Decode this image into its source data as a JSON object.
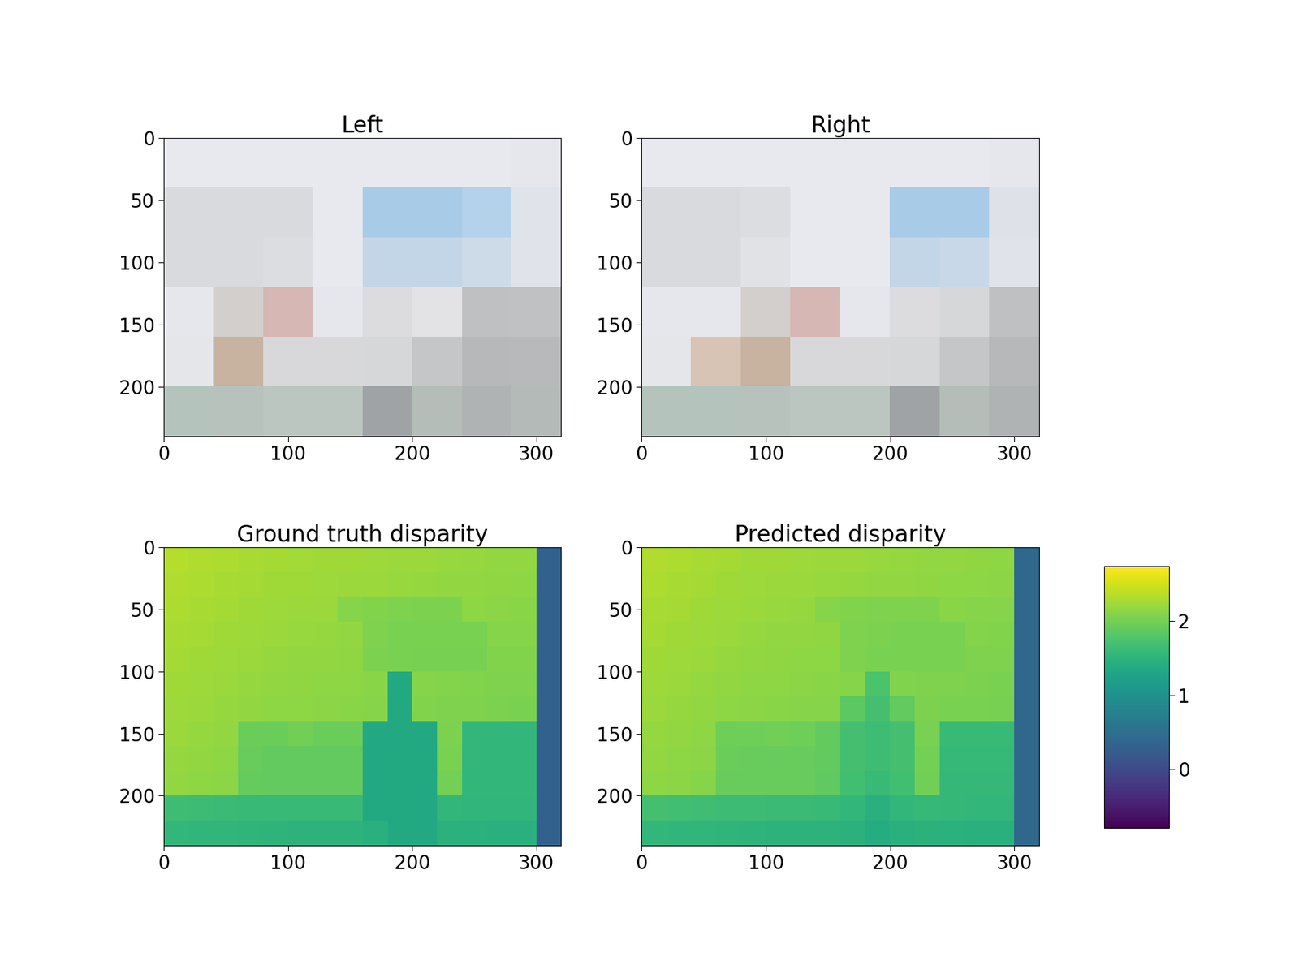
{
  "chart_data": [
    {
      "type": "image",
      "title": "Left",
      "xlim": [
        0,
        320
      ],
      "ylim": [
        240,
        0
      ],
      "xticks": [
        0,
        100,
        200,
        300
      ],
      "yticks": [
        0,
        50,
        100,
        150,
        200
      ],
      "colors": [
        [
          "#e8e9ef",
          "#e8e9ef",
          "#e8e9ef",
          "#e8e9ef",
          "#e8e9ef",
          "#e8e9ef",
          "#e8e9ef",
          "#e6e7ec"
        ],
        [
          "#d9dadd",
          "#d9dadd",
          "#d9dadd",
          "#e8e9ef",
          "#a8cce8",
          "#a8cce8",
          "#b4d2ea",
          "#e1e3ea"
        ],
        [
          "#d9dadd",
          "#d9dadd",
          "#dcdde0",
          "#e8e9ef",
          "#c3d6e8",
          "#c3d6e8",
          "#cddbe8",
          "#e1e3ea"
        ],
        [
          "#e6e7ec",
          "#d3cfcd",
          "#d6b7b4",
          "#e6e7ec",
          "#dcdcde",
          "#e3e3e6",
          "#bfc0c2",
          "#c0c1c3"
        ],
        [
          "#e5e6ea",
          "#c8b2a0",
          "#d8d8da",
          "#d8d8da",
          "#d6d7d9",
          "#c5c6c8",
          "#b7b8ba",
          "#b8b9bb"
        ],
        [
          "#b4c4bd",
          "#b8c2bc",
          "#bcc6c0",
          "#bcc6c0",
          "#9fa3a6",
          "#b4bdb8",
          "#b0b3b4",
          "#b4bab7"
        ]
      ]
    },
    {
      "type": "image",
      "title": "Right",
      "xlim": [
        0,
        320
      ],
      "ylim": [
        240,
        0
      ],
      "xticks": [
        0,
        100,
        200,
        300
      ],
      "yticks": [
        0,
        50,
        100,
        150,
        200
      ],
      "colors": [
        [
          "#e8e9ef",
          "#e8e9ef",
          "#e8e9ef",
          "#e8e9ef",
          "#e8e9ef",
          "#e8e9ef",
          "#e8e9ef",
          "#e6e7ec"
        ],
        [
          "#d9dadd",
          "#d9dadd",
          "#dcdde0",
          "#e8e9ef",
          "#e8e9ef",
          "#a8cce8",
          "#a8cce8",
          "#dfe1e8"
        ],
        [
          "#d9dadd",
          "#d9dadd",
          "#e1e2e6",
          "#e8e9ef",
          "#e8e9ef",
          "#c3d6e8",
          "#c9d8e8",
          "#e1e3ea"
        ],
        [
          "#e6e7ec",
          "#e6e7ec",
          "#d3cfcd",
          "#d6b7b4",
          "#e6e7ec",
          "#dcdcde",
          "#d6d7d9",
          "#bfc0c2"
        ],
        [
          "#e5e6ea",
          "#d8c4b4",
          "#c8b2a0",
          "#d8d8da",
          "#d8d8da",
          "#d6d7d9",
          "#c5c6c8",
          "#b7b8ba"
        ],
        [
          "#b4c4bd",
          "#b4c4bd",
          "#b8c2bc",
          "#bcc6c0",
          "#bcc6c0",
          "#9fa3a6",
          "#b4bdb8",
          "#b0b3b4"
        ]
      ]
    },
    {
      "type": "heatmap",
      "title": "Ground truth disparity",
      "xlim": [
        0,
        320
      ],
      "ylim": [
        240,
        0
      ],
      "xticks": [
        0,
        100,
        200,
        300
      ],
      "yticks": [
        0,
        50,
        100,
        150,
        200
      ],
      "color_range": [
        -0.8,
        2.75
      ],
      "cells": [
        [
          2.35,
          2.33,
          2.31,
          2.29,
          2.27,
          2.26,
          2.25,
          2.24,
          2.23,
          2.22,
          2.21,
          2.2,
          2.19,
          2.18,
          2.17,
          0.3
        ],
        [
          2.33,
          2.31,
          2.29,
          2.27,
          2.25,
          2.24,
          2.23,
          2.22,
          2.21,
          2.2,
          2.19,
          2.18,
          2.17,
          2.16,
          2.15,
          0.3
        ],
        [
          2.31,
          2.29,
          2.27,
          2.25,
          2.23,
          2.22,
          2.21,
          2.1,
          2.08,
          2.06,
          2.05,
          2.05,
          2.14,
          2.13,
          2.12,
          0.3
        ],
        [
          2.29,
          2.27,
          2.25,
          2.23,
          2.21,
          2.2,
          2.19,
          2.18,
          2.06,
          2.04,
          2.03,
          2.03,
          2.03,
          2.1,
          2.1,
          0.3
        ],
        [
          2.27,
          2.25,
          2.23,
          2.21,
          2.19,
          2.18,
          2.17,
          2.16,
          2.05,
          2.03,
          2.02,
          2.02,
          2.02,
          2.08,
          2.08,
          0.3
        ],
        [
          2.25,
          2.23,
          2.21,
          2.19,
          2.17,
          2.16,
          2.15,
          2.14,
          2.12,
          1.35,
          2.1,
          2.09,
          2.08,
          2.07,
          2.06,
          0.3
        ],
        [
          2.23,
          2.21,
          2.19,
          2.17,
          2.15,
          2.14,
          2.13,
          2.12,
          2.1,
          1.35,
          2.08,
          2.07,
          2.06,
          2.05,
          2.04,
          0.3
        ],
        [
          2.21,
          2.19,
          2.17,
          1.95,
          1.95,
          2.0,
          1.95,
          1.95,
          1.35,
          1.35,
          1.35,
          2.05,
          1.55,
          1.55,
          1.55,
          0.3
        ],
        [
          2.19,
          2.17,
          2.15,
          1.93,
          1.9,
          1.9,
          1.9,
          1.9,
          1.35,
          1.35,
          1.35,
          2.03,
          1.55,
          1.55,
          1.55,
          0.3
        ],
        [
          2.17,
          2.15,
          2.13,
          1.91,
          1.9,
          1.9,
          1.9,
          1.9,
          1.35,
          1.35,
          1.35,
          2.01,
          1.55,
          1.55,
          1.55,
          0.3
        ],
        [
          1.65,
          1.63,
          1.62,
          1.61,
          1.6,
          1.6,
          1.6,
          1.6,
          1.35,
          1.35,
          1.35,
          1.55,
          1.53,
          1.53,
          1.53,
          0.3
        ],
        [
          1.55,
          1.54,
          1.53,
          1.52,
          1.51,
          1.5,
          1.5,
          1.5,
          1.45,
          1.35,
          1.35,
          1.48,
          1.47,
          1.46,
          1.45,
          0.3
        ]
      ]
    },
    {
      "type": "heatmap",
      "title": "Predicted disparity",
      "xlim": [
        0,
        320
      ],
      "ylim": [
        240,
        0
      ],
      "xticks": [
        0,
        100,
        200,
        300
      ],
      "yticks": [
        0,
        50,
        100,
        150,
        200
      ],
      "color_range": [
        -0.8,
        2.75
      ],
      "colorbar_ticks": [
        0,
        1,
        2
      ],
      "cells": [
        [
          2.33,
          2.31,
          2.29,
          2.27,
          2.25,
          2.24,
          2.23,
          2.22,
          2.21,
          2.2,
          2.19,
          2.18,
          2.17,
          2.16,
          2.15,
          0.4
        ],
        [
          2.31,
          2.29,
          2.27,
          2.25,
          2.23,
          2.22,
          2.21,
          2.2,
          2.19,
          2.18,
          2.17,
          2.16,
          2.15,
          2.14,
          2.13,
          0.4
        ],
        [
          2.29,
          2.27,
          2.25,
          2.23,
          2.21,
          2.2,
          2.19,
          2.1,
          2.08,
          2.07,
          2.06,
          2.06,
          2.12,
          2.11,
          2.1,
          0.4
        ],
        [
          2.27,
          2.25,
          2.23,
          2.21,
          2.19,
          2.18,
          2.17,
          2.16,
          2.07,
          2.05,
          2.04,
          2.04,
          2.04,
          2.09,
          2.08,
          0.4
        ],
        [
          2.25,
          2.23,
          2.21,
          2.19,
          2.17,
          2.16,
          2.15,
          2.14,
          2.06,
          2.04,
          2.03,
          2.03,
          2.03,
          2.07,
          2.06,
          0.4
        ],
        [
          2.23,
          2.21,
          2.19,
          2.17,
          2.15,
          2.14,
          2.13,
          2.12,
          2.1,
          1.75,
          2.08,
          2.07,
          2.06,
          2.05,
          2.04,
          0.4
        ],
        [
          2.21,
          2.19,
          2.17,
          2.15,
          2.13,
          2.12,
          2.11,
          2.1,
          1.85,
          1.7,
          1.9,
          2.05,
          2.04,
          2.03,
          2.02,
          0.4
        ],
        [
          2.19,
          2.17,
          2.15,
          1.97,
          1.97,
          2.0,
          1.97,
          1.9,
          1.7,
          1.65,
          1.7,
          2.03,
          1.6,
          1.6,
          1.6,
          0.4
        ],
        [
          2.17,
          2.15,
          2.13,
          1.95,
          1.93,
          1.93,
          1.93,
          1.9,
          1.7,
          1.65,
          1.7,
          2.01,
          1.58,
          1.58,
          1.58,
          0.4
        ],
        [
          2.15,
          2.13,
          2.11,
          1.93,
          1.92,
          1.92,
          1.92,
          1.88,
          1.68,
          1.6,
          1.68,
          1.99,
          1.57,
          1.57,
          1.57,
          0.4
        ],
        [
          1.7,
          1.68,
          1.66,
          1.64,
          1.63,
          1.62,
          1.62,
          1.61,
          1.55,
          1.45,
          1.55,
          1.58,
          1.56,
          1.55,
          1.55,
          0.4
        ],
        [
          1.55,
          1.54,
          1.53,
          1.52,
          1.51,
          1.5,
          1.5,
          1.5,
          1.48,
          1.4,
          1.45,
          1.48,
          1.47,
          1.46,
          1.45,
          0.4
        ]
      ]
    }
  ]
}
